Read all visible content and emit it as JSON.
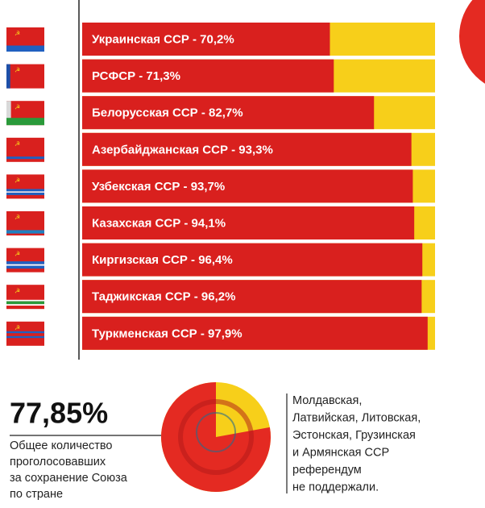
{
  "chart_data": [
    {
      "type": "bar",
      "orientation": "horizontal",
      "categories": [
        "Украинская ССР - 70,2%",
        "РСФСР - 71,3%",
        "Белорусская ССР - 82,7%",
        "Азербайджанская ССР - 93,3%",
        "Узбекская ССР - 93,7%",
        "Казахская ССР - 94,1%",
        "Киргизская ССР - 96,4%",
        "Таджикская ССР - 96,2%",
        "Туркменская ССР - 97,9%"
      ],
      "values": [
        70.2,
        71.3,
        82.7,
        93.3,
        93.7,
        94.1,
        96.4,
        96.2,
        97.9
      ],
      "color": "#d9201e",
      "remainder_color": "#f7cf1a",
      "xlim": [
        0,
        100
      ]
    },
    {
      "type": "pie",
      "values": [
        77.85
      ],
      "value_labels": [
        "77,85%"
      ],
      "color": "#e42a22",
      "remainder_color": "#f7cf1a",
      "caption": [
        "Общее количество",
        "проголосовавших",
        "за сохранение Союза",
        "по стране"
      ],
      "note": [
        "Молдавская,",
        "Латвийская, Литовская,",
        "Эстонская, Грузинская",
        "и Армянская ССР",
        "референдум",
        "не поддержали."
      ]
    }
  ]
}
